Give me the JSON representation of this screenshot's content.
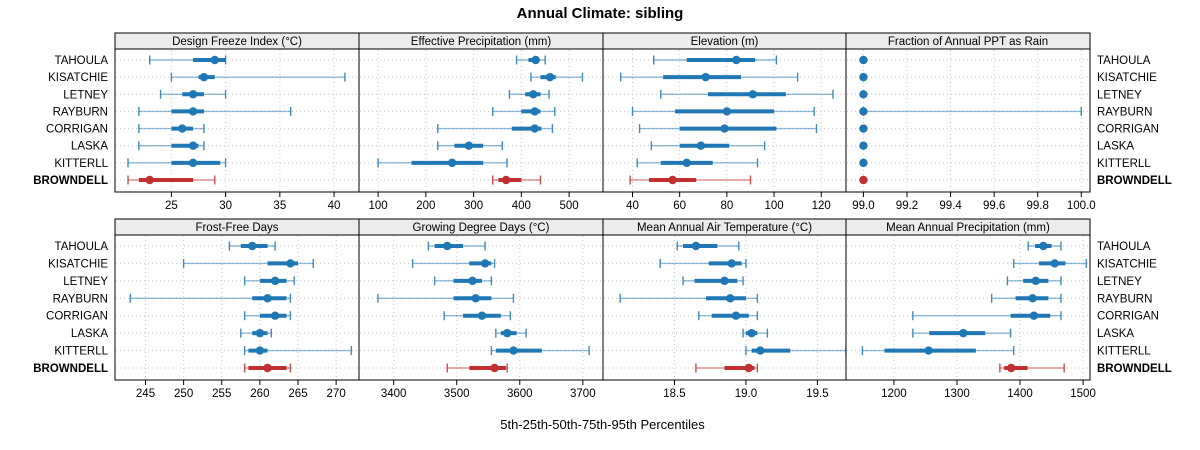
{
  "title": "Annual Climate: sibling",
  "xlabel": "5th-25th-50th-75th-95th Percentiles",
  "percentile_labels": [
    "5th",
    "25th",
    "50th",
    "75th",
    "95th"
  ],
  "sites": [
    "TAHOULA",
    "KISATCHIE",
    "LETNEY",
    "RAYBURN",
    "CORRIGAN",
    "LASKA",
    "KITTERLL",
    "BROWNDELL"
  ],
  "highlight_site": "BROWNDELL",
  "colors": {
    "series": "#1f77b4",
    "highlight": "#c03030",
    "strip_bg": "#ececec",
    "grid": "#c6c6c6",
    "border": "#000000"
  },
  "chart_data": [
    {
      "type": "dotplot",
      "title": "Design Freeze Index (°C)",
      "xlim": [
        19.8,
        42.3
      ],
      "ticks": [
        25,
        30,
        35,
        40
      ],
      "tick_labels": [
        "25",
        "30",
        "35",
        "40"
      ],
      "series": [
        {
          "name": "TAHOULA",
          "percentiles": [
            23,
            27,
            29,
            30,
            30
          ]
        },
        {
          "name": "KISATCHIE",
          "percentiles": [
            25,
            27.5,
            28,
            29,
            41
          ]
        },
        {
          "name": "LETNEY",
          "percentiles": [
            24,
            26,
            27,
            28,
            30
          ]
        },
        {
          "name": "RAYBURN",
          "percentiles": [
            22,
            25,
            27,
            28,
            36
          ]
        },
        {
          "name": "CORRIGAN",
          "percentiles": [
            22,
            25,
            26,
            27,
            28
          ]
        },
        {
          "name": "LASKA",
          "percentiles": [
            22,
            25,
            27,
            27.5,
            28
          ]
        },
        {
          "name": "KITTERLL",
          "percentiles": [
            21,
            25,
            27,
            29.5,
            30
          ]
        },
        {
          "name": "BROWNDELL",
          "percentiles": [
            21,
            22,
            23,
            27,
            29
          ]
        }
      ]
    },
    {
      "type": "dotplot",
      "title": "Effective Precipitation (mm)",
      "xlim": [
        60,
        571
      ],
      "ticks": [
        100,
        200,
        300,
        400,
        500
      ],
      "tick_labels": [
        "100",
        "200",
        "300",
        "400",
        "500"
      ],
      "series": [
        {
          "name": "TAHOULA",
          "percentiles": [
            390,
            415,
            430,
            438,
            450
          ]
        },
        {
          "name": "KISATCHIE",
          "percentiles": [
            420,
            440,
            460,
            472,
            528
          ]
        },
        {
          "name": "LETNEY",
          "percentiles": [
            375,
            408,
            425,
            440,
            458
          ]
        },
        {
          "name": "RAYBURN",
          "percentiles": [
            340,
            400,
            428,
            440,
            470
          ]
        },
        {
          "name": "CORRIGAN",
          "percentiles": [
            225,
            380,
            428,
            442,
            465
          ]
        },
        {
          "name": "LASKA",
          "percentiles": [
            225,
            260,
            290,
            320,
            360
          ]
        },
        {
          "name": "KITTERLL",
          "percentiles": [
            100,
            170,
            255,
            320,
            370
          ]
        },
        {
          "name": "BROWNDELL",
          "percentiles": [
            340,
            352,
            368,
            400,
            440
          ]
        }
      ]
    },
    {
      "type": "dotplot",
      "title": "Elevation (m)",
      "xlim": [
        27.5,
        130.5
      ],
      "ticks": [
        40,
        60,
        80,
        100,
        120
      ],
      "tick_labels": [
        "40",
        "60",
        "80",
        "100",
        "120"
      ],
      "series": [
        {
          "name": "TAHOULA",
          "percentiles": [
            49,
            63,
            84,
            92,
            101
          ]
        },
        {
          "name": "KISATCHIE",
          "percentiles": [
            35,
            53,
            71,
            86,
            110
          ]
        },
        {
          "name": "LETNEY",
          "percentiles": [
            52,
            72,
            91,
            105,
            125
          ]
        },
        {
          "name": "RAYBURN",
          "percentiles": [
            40,
            58,
            80,
            100,
            117
          ]
        },
        {
          "name": "CORRIGAN",
          "percentiles": [
            43,
            60,
            79,
            101,
            118
          ]
        },
        {
          "name": "LASKA",
          "percentiles": [
            48,
            60,
            69,
            81,
            96
          ]
        },
        {
          "name": "KITTERLL",
          "percentiles": [
            42,
            52,
            63,
            74,
            93
          ]
        },
        {
          "name": "BROWNDELL",
          "percentiles": [
            39,
            47,
            57,
            67,
            90
          ]
        }
      ]
    },
    {
      "type": "dotplot",
      "title": "Fraction of Annual PPT as Rain",
      "xlim": [
        98.92,
        100.04
      ],
      "ticks": [
        99.0,
        99.2,
        99.4,
        99.6,
        99.8,
        100.0
      ],
      "tick_labels": [
        "99.0",
        "99.2",
        "99.4",
        "99.6",
        "99.8",
        "100.0"
      ],
      "series": [
        {
          "name": "TAHOULA",
          "percentiles": [
            99,
            99,
            99,
            99,
            99
          ]
        },
        {
          "name": "KISATCHIE",
          "percentiles": [
            99,
            99,
            99,
            99,
            99
          ]
        },
        {
          "name": "LETNEY",
          "percentiles": [
            99,
            99,
            99,
            99,
            99
          ]
        },
        {
          "name": "RAYBURN",
          "percentiles": [
            99,
            99,
            99,
            99,
            100
          ]
        },
        {
          "name": "CORRIGAN",
          "percentiles": [
            99,
            99,
            99,
            99,
            99
          ]
        },
        {
          "name": "LASKA",
          "percentiles": [
            99,
            99,
            99,
            99,
            99
          ]
        },
        {
          "name": "KITTERLL",
          "percentiles": [
            99,
            99,
            99,
            99,
            99
          ]
        },
        {
          "name": "BROWNDELL",
          "percentiles": [
            99,
            99,
            99,
            99,
            99
          ]
        }
      ]
    },
    {
      "type": "dotplot",
      "title": "Frost-Free Days",
      "xlim": [
        241,
        273
      ],
      "ticks": [
        245,
        250,
        255,
        260,
        265,
        270
      ],
      "tick_labels": [
        "245",
        "250",
        "255",
        "260",
        "265",
        "270"
      ],
      "series": [
        {
          "name": "TAHOULA",
          "percentiles": [
            256,
            257.5,
            259,
            261,
            262
          ]
        },
        {
          "name": "KISATCHIE",
          "percentiles": [
            250,
            261,
            264,
            265,
            267
          ]
        },
        {
          "name": "LETNEY",
          "percentiles": [
            258,
            260,
            262,
            263.5,
            264.5
          ]
        },
        {
          "name": "RAYBURN",
          "percentiles": [
            243,
            259,
            261,
            263.5,
            264
          ]
        },
        {
          "name": "CORRIGAN",
          "percentiles": [
            258,
            260,
            262,
            263.5,
            264
          ]
        },
        {
          "name": "LASKA",
          "percentiles": [
            257.5,
            259,
            260,
            261,
            261.5
          ]
        },
        {
          "name": "KITTERLL",
          "percentiles": [
            258,
            258.5,
            260,
            261,
            272
          ]
        },
        {
          "name": "BROWNDELL",
          "percentiles": [
            258,
            258.5,
            261,
            263.5,
            264
          ]
        }
      ]
    },
    {
      "type": "dotplot",
      "title": "Growing Degree Days (°C)",
      "xlim": [
        3345,
        3732
      ],
      "ticks": [
        3400,
        3500,
        3600,
        3700
      ],
      "tick_labels": [
        "3400",
        "3500",
        "3600",
        "3700"
      ],
      "series": [
        {
          "name": "TAHOULA",
          "percentiles": [
            3455,
            3465,
            3485,
            3510,
            3545
          ]
        },
        {
          "name": "KISATCHIE",
          "percentiles": [
            3430,
            3520,
            3545,
            3555,
            3560
          ]
        },
        {
          "name": "LETNEY",
          "percentiles": [
            3465,
            3495,
            3525,
            3540,
            3555
          ]
        },
        {
          "name": "RAYBURN",
          "percentiles": [
            3375,
            3495,
            3530,
            3555,
            3590
          ]
        },
        {
          "name": "CORRIGAN",
          "percentiles": [
            3480,
            3510,
            3540,
            3570,
            3585
          ]
        },
        {
          "name": "LASKA",
          "percentiles": [
            3562,
            3570,
            3580,
            3595,
            3610
          ]
        },
        {
          "name": "KITTERLL",
          "percentiles": [
            3555,
            3562,
            3590,
            3635,
            3710
          ]
        },
        {
          "name": "BROWNDELL",
          "percentiles": [
            3485,
            3520,
            3560,
            3578,
            3580
          ]
        }
      ]
    },
    {
      "type": "dotplot",
      "title": "Mean Annual Air Temperature (°C)",
      "xlim": [
        18.0,
        19.7
      ],
      "ticks": [
        18.5,
        19.0,
        19.5
      ],
      "tick_labels": [
        "18.5",
        "19.0",
        "19.5"
      ],
      "series": [
        {
          "name": "TAHOULA",
          "percentiles": [
            18.52,
            18.56,
            18.65,
            18.8,
            18.95
          ]
        },
        {
          "name": "KISATCHIE",
          "percentiles": [
            18.4,
            18.74,
            18.9,
            18.97,
            19.0
          ]
        },
        {
          "name": "LETNEY",
          "percentiles": [
            18.56,
            18.64,
            18.85,
            18.94,
            18.98
          ]
        },
        {
          "name": "RAYBURN",
          "percentiles": [
            18.12,
            18.72,
            18.89,
            19.0,
            19.08
          ]
        },
        {
          "name": "CORRIGAN",
          "percentiles": [
            18.67,
            18.76,
            18.93,
            19.02,
            19.08
          ]
        },
        {
          "name": "LASKA",
          "percentiles": [
            18.98,
            19.0,
            19.04,
            19.08,
            19.15
          ]
        },
        {
          "name": "KITTERLL",
          "percentiles": [
            19.0,
            19.04,
            19.1,
            19.31,
            19.7
          ]
        },
        {
          "name": "BROWNDELL",
          "percentiles": [
            18.65,
            18.85,
            19.02,
            19.06,
            19.08
          ]
        }
      ]
    },
    {
      "type": "dotplot",
      "title": "Mean Annual Precipitation (mm)",
      "xlim": [
        1124,
        1511
      ],
      "ticks": [
        1200,
        1300,
        1400,
        1500
      ],
      "tick_labels": [
        "1200",
        "1300",
        "1400",
        "1500"
      ],
      "series": [
        {
          "name": "TAHOULA",
          "percentiles": [
            1413,
            1424,
            1437,
            1450,
            1465
          ]
        },
        {
          "name": "KISATCHIE",
          "percentiles": [
            1390,
            1430,
            1455,
            1472,
            1505
          ]
        },
        {
          "name": "LETNEY",
          "percentiles": [
            1380,
            1405,
            1425,
            1445,
            1465
          ]
        },
        {
          "name": "RAYBURN",
          "percentiles": [
            1355,
            1393,
            1420,
            1445,
            1465
          ]
        },
        {
          "name": "CORRIGAN",
          "percentiles": [
            1230,
            1385,
            1422,
            1448,
            1465
          ]
        },
        {
          "name": "LASKA",
          "percentiles": [
            1230,
            1256,
            1310,
            1345,
            1385
          ]
        },
        {
          "name": "KITTERLL",
          "percentiles": [
            1150,
            1185,
            1255,
            1330,
            1390
          ]
        },
        {
          "name": "BROWNDELL",
          "percentiles": [
            1368,
            1375,
            1386,
            1412,
            1470
          ]
        }
      ]
    }
  ]
}
